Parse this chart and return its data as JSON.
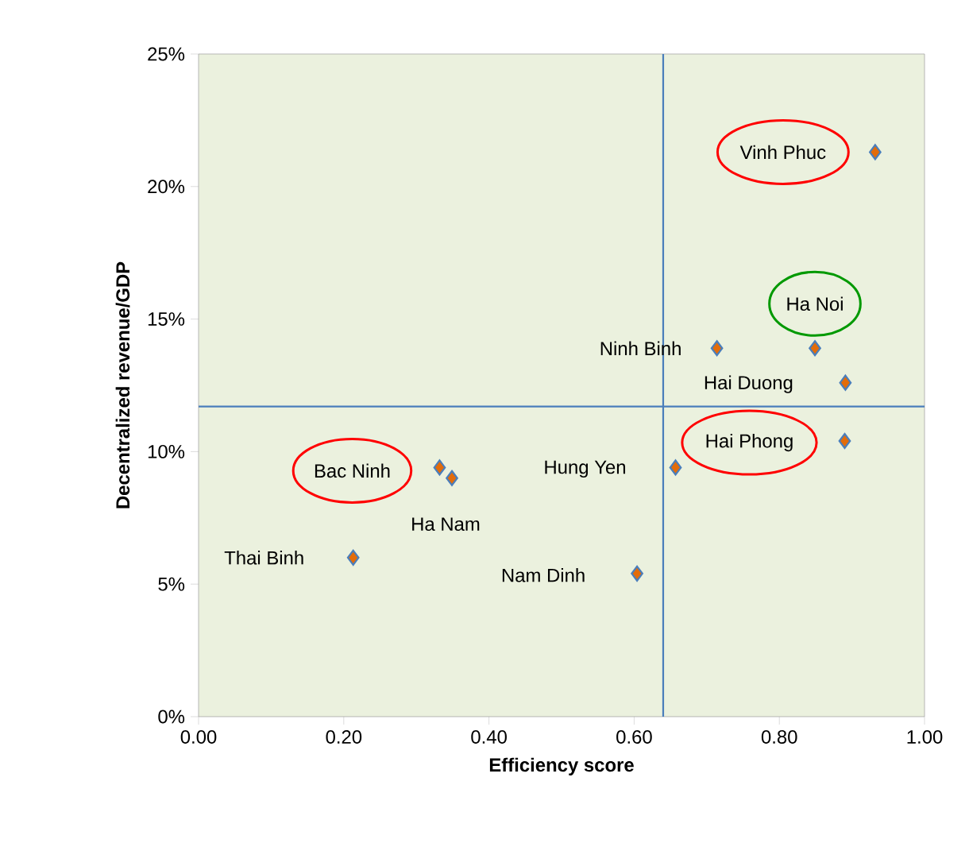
{
  "chart_data": {
    "type": "scatter",
    "xlabel": "Efficiency score",
    "ylabel": "Decentralized revenue/GDP",
    "x": [
      0.932,
      0.849,
      0.714,
      0.891,
      0.89,
      0.657,
      0.332,
      0.349,
      0.213,
      0.604
    ],
    "series": [
      {
        "color": "#e36c0a",
        "values": [
          21.3,
          13.9,
          13.9,
          12.6,
          10.4,
          9.4,
          9.4,
          9.0,
          6.0,
          5.4
        ]
      }
    ],
    "marker": "diamond",
    "xlim": [
      0,
      1
    ],
    "xticks": [
      {
        "value": 0,
        "label": "0.00"
      },
      {
        "value": 0.2,
        "label": "0.20"
      },
      {
        "value": 0.4,
        "label": "0.40"
      },
      {
        "value": 0.6,
        "label": "0.60"
      },
      {
        "value": 0.8,
        "label": "0.80"
      },
      {
        "value": 1,
        "label": "1.00"
      }
    ],
    "ylim": [
      0,
      25
    ],
    "yticks": [
      {
        "value": 0,
        "label": "0%"
      },
      {
        "value": 5,
        "label": "5%"
      },
      {
        "value": 10,
        "label": "10%"
      },
      {
        "value": 15,
        "label": "15%"
      },
      {
        "value": 20,
        "label": "20%"
      },
      {
        "value": 25,
        "label": "25%"
      }
    ],
    "ref_lines": [
      {
        "axis": "x",
        "value": 0.64,
        "color": "#4a7ebb"
      },
      {
        "axis": "y",
        "value": 11.7,
        "color": "#4a7ebb"
      }
    ],
    "annotations": [
      {
        "text": "Vinh Phuc",
        "x": 0.932,
        "y": 21.3
      },
      {
        "text": "Ha Noi",
        "x": 0.849,
        "y": 13.9
      },
      {
        "text": "Ninh Binh",
        "x": 0.714,
        "y": 13.9
      },
      {
        "text": "Hai Duong",
        "x": 0.891,
        "y": 12.6
      },
      {
        "text": "Hai Phong",
        "x": 0.89,
        "y": 10.4
      },
      {
        "text": "Hung Yen",
        "x": 0.657,
        "y": 9.4
      },
      {
        "text": "Bac Ninh",
        "x": 0.332,
        "y": 9.4
      },
      {
        "text": "Ha Nam",
        "x": 0.349,
        "y": 9.0
      },
      {
        "text": "Thai Binh",
        "x": 0.213,
        "y": 6.0
      },
      {
        "text": "Nam Dinh",
        "x": 0.604,
        "y": 5.4
      }
    ]
  }
}
